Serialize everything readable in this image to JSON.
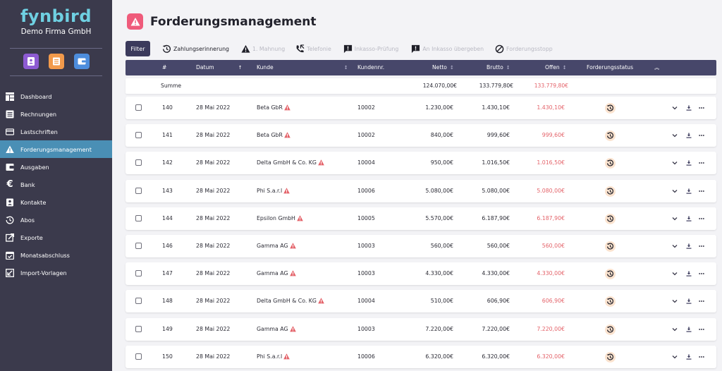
{
  "sidebar": {
    "logo": "fynbird",
    "company": "Demo Firma GmbH",
    "quick_icons": [
      {
        "icon": "contact-book-icon",
        "color": "#8d5bd2"
      },
      {
        "icon": "document-list-icon",
        "color": "#f29a4b"
      },
      {
        "icon": "wallet-icon",
        "color": "#4d8ddd"
      }
    ],
    "items": [
      {
        "label": "Dashboard",
        "icon": "dashboard-icon"
      },
      {
        "label": "Rechnungen",
        "icon": "invoice-icon"
      },
      {
        "label": "Lastschriften",
        "icon": "card-icon"
      },
      {
        "label": "Forderungsmanagement",
        "icon": "warning-icon",
        "active": true
      },
      {
        "label": "Ausgaben",
        "icon": "expenses-icon"
      },
      {
        "label": "Bank",
        "icon": "euro-icon"
      },
      {
        "label": "Kontakte",
        "icon": "contact-icon"
      },
      {
        "label": "Abos",
        "icon": "history-icon"
      },
      {
        "label": "Exporte",
        "icon": "export-icon"
      },
      {
        "label": "Monatsabschluss",
        "icon": "calendar-check-icon"
      },
      {
        "label": "Import-Vorlagen",
        "icon": "import-icon"
      }
    ]
  },
  "header": {
    "title": "Forderungsmanagement",
    "icon": "warning-icon",
    "icon_color": "#ef5b7b"
  },
  "toolbar": {
    "filter_label": "Filter",
    "actions": [
      {
        "label": "Zahlungserinnerung",
        "icon": "clock-rewind-icon",
        "enabled": true
      },
      {
        "label": "1. Mahnung",
        "icon": "warning-icon",
        "enabled": false
      },
      {
        "label": "Telefonie",
        "icon": "phone-icon",
        "enabled": false
      },
      {
        "label": "Inkasso-Prüfung",
        "icon": "alert-message-icon",
        "enabled": false
      },
      {
        "label": "An Inkasso übergeben",
        "icon": "alert-message-icon",
        "enabled": false
      },
      {
        "label": "Forderungsstopp",
        "icon": "stop-icon",
        "enabled": false
      }
    ]
  },
  "table": {
    "columns": {
      "nr": "#",
      "datum": "Datum",
      "kunde": "Kunde",
      "kundennr": "Kundennr.",
      "netto": "Netto",
      "brutto": "Brutto",
      "offen": "Offen",
      "status": "Forderungsstatus"
    },
    "sum": {
      "label": "Summe",
      "netto": "124.070,00€",
      "brutto": "133.779,80€",
      "offen": "133.779,80€"
    },
    "rows": [
      {
        "nr": "140",
        "datum": "28 Mai 2022",
        "kunde": "Beta GbR",
        "kundennr": "10002",
        "netto": "1.230,00€",
        "brutto": "1.430,10€",
        "offen": "1.430,10€"
      },
      {
        "nr": "141",
        "datum": "28 Mai 2022",
        "kunde": "Beta GbR",
        "kundennr": "10002",
        "netto": "840,00€",
        "brutto": "999,60€",
        "offen": "999,60€"
      },
      {
        "nr": "142",
        "datum": "28 Mai 2022",
        "kunde": "Delta GmbH & Co. KG",
        "kundennr": "10004",
        "netto": "950,00€",
        "brutto": "1.016,50€",
        "offen": "1.016,50€"
      },
      {
        "nr": "143",
        "datum": "28 Mai 2022",
        "kunde": "Phi S.a.r.l",
        "kundennr": "10006",
        "netto": "5.080,00€",
        "brutto": "5.080,00€",
        "offen": "5.080,00€"
      },
      {
        "nr": "144",
        "datum": "28 Mai 2022",
        "kunde": "Epsilon GmbH",
        "kundennr": "10005",
        "netto": "5.570,00€",
        "brutto": "6.187,90€",
        "offen": "6.187,90€"
      },
      {
        "nr": "146",
        "datum": "28 Mai 2022",
        "kunde": "Gamma AG",
        "kundennr": "10003",
        "netto": "560,00€",
        "brutto": "560,00€",
        "offen": "560,00€"
      },
      {
        "nr": "147",
        "datum": "28 Mai 2022",
        "kunde": "Gamma AG",
        "kundennr": "10003",
        "netto": "4.330,00€",
        "brutto": "4.330,00€",
        "offen": "4.330,00€"
      },
      {
        "nr": "148",
        "datum": "28 Mai 2022",
        "kunde": "Delta GmbH & Co. KG",
        "kundennr": "10004",
        "netto": "510,00€",
        "brutto": "606,90€",
        "offen": "606,90€"
      },
      {
        "nr": "149",
        "datum": "28 Mai 2022",
        "kunde": "Gamma AG",
        "kundennr": "10003",
        "netto": "7.220,00€",
        "brutto": "7.220,00€",
        "offen": "7.220,00€"
      },
      {
        "nr": "150",
        "datum": "28 Mai 2022",
        "kunde": "Phi S.a.r.l",
        "kundennr": "10006",
        "netto": "6.320,00€",
        "brutto": "6.320,00€",
        "offen": "6.320,00€"
      }
    ]
  },
  "colors": {
    "sidebar_bg": "#3b3a4c",
    "active_bg": "#4a8fb5",
    "header_bg": "#47476a",
    "accent_red": "#e4636a",
    "logo": "#6fd0e2"
  }
}
